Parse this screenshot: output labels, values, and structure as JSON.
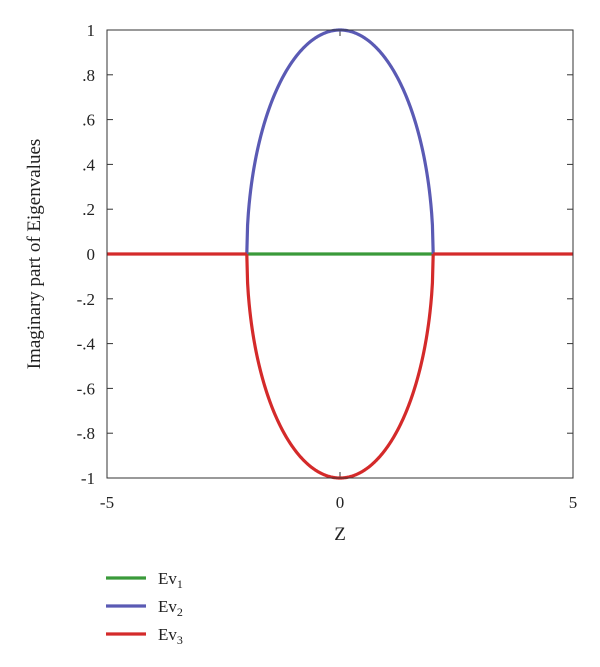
{
  "chart_data": {
    "type": "line",
    "xlabel": "Z",
    "ylabel": "Imaginary part of Eigenvalues",
    "xlim": [
      -5,
      5
    ],
    "ylim": [
      -1,
      1
    ],
    "x_ticks": [
      -5,
      0,
      5
    ],
    "y_ticks": [
      1,
      0.8,
      0.6,
      0.4,
      0.2,
      0,
      -0.2,
      -0.4,
      -0.6,
      -0.8,
      -1
    ],
    "grid": false,
    "legend_position": "bottom-left, below plot",
    "series": [
      {
        "name": "Ev",
        "subscript": "1",
        "color": "#3a9a3a",
        "segments": [
          {
            "x": [
              -2,
              2
            ],
            "y": [
              0,
              0
            ]
          }
        ]
      },
      {
        "name": "Ev",
        "subscript": "2",
        "color": "#5a5ab4",
        "curve": {
          "form": "y = sqrt(1 - x^2/4)",
          "x_range": [
            -2,
            2
          ]
        }
      },
      {
        "name": "Ev",
        "subscript": "3",
        "color": "#d42a2a",
        "segments": [
          {
            "x": [
              -5,
              -2
            ],
            "y": [
              0,
              0
            ]
          },
          {
            "x": [
              2,
              5
            ],
            "y": [
              0,
              0
            ]
          }
        ],
        "curve": {
          "form": "y = -sqrt(1 - x^2/4)",
          "x_range": [
            -2,
            2
          ]
        }
      }
    ]
  }
}
